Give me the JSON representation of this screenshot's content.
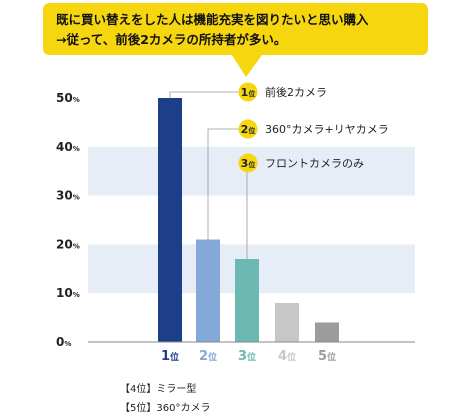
{
  "callout": {
    "line1": "既に買い替えをした人は機能充実を図りたいと思い購入",
    "line2": "→従って、前後2カメラの所持者が多い。"
  },
  "chart_data": {
    "type": "bar",
    "categories": [
      "1位",
      "2位",
      "3位",
      "4位",
      "5位"
    ],
    "values": [
      50,
      21,
      17,
      8,
      4
    ],
    "ylim": [
      0,
      50
    ],
    "yticks": [
      0,
      10,
      20,
      30,
      40,
      50
    ],
    "ytick_unit": "%",
    "grid": "alternating horizontal bands",
    "bar_colors": [
      "#1d3f8a",
      "#84a9d9",
      "#6cb8b3",
      "#c7c7c7",
      "#9c9c9c"
    ],
    "band_color": "#e6edf7",
    "badge_color": "#f6d60f",
    "callout_color": "#f6d60f",
    "annotations": [
      {
        "rank": "1",
        "rank_suffix": "位",
        "label": "前後2カメラ"
      },
      {
        "rank": "2",
        "rank_suffix": "位",
        "label": "360°カメラ+リヤカメラ"
      },
      {
        "rank": "3",
        "rank_suffix": "位",
        "label": "フロントカメラのみ"
      }
    ],
    "notes": [
      {
        "tag": "【4位】",
        "text": "ミラー型"
      },
      {
        "tag": "【5位】",
        "text": "360°カメラ"
      }
    ]
  }
}
